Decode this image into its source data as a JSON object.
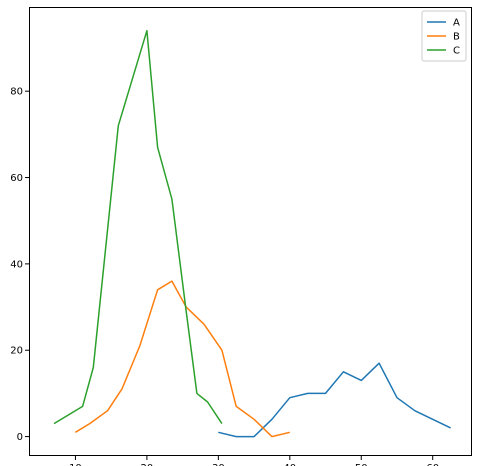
{
  "chart_data": {
    "type": "line",
    "xlim": [
      3.5,
      65.5
    ],
    "ylim": [
      -4.5,
      99.5
    ],
    "x_ticks": [
      10,
      20,
      30,
      40,
      50,
      60
    ],
    "y_ticks": [
      0,
      20,
      40,
      60,
      80
    ],
    "grid": false,
    "legend_position": "top-right",
    "series": [
      {
        "name": "A",
        "color": "#1f77b4",
        "x": [
          30,
          32.5,
          35,
          37.5,
          40,
          42.5,
          45,
          47.5,
          50,
          52.5,
          55,
          57.5,
          60,
          62.5
        ],
        "y": [
          1,
          0,
          0,
          4,
          9,
          10,
          10,
          15,
          13,
          17,
          9,
          6,
          4,
          2
        ]
      },
      {
        "name": "B",
        "color": "#ff7f0e",
        "x": [
          10,
          12,
          14.5,
          16.5,
          19,
          21.5,
          23.5,
          25.5,
          28,
          30.5,
          32.5,
          35,
          37.5,
          40
        ],
        "y": [
          1,
          3,
          6,
          11,
          21,
          34,
          36,
          30,
          26,
          20,
          7,
          4,
          0,
          1
        ]
      },
      {
        "name": "C",
        "color": "#2ca02c",
        "x": [
          7,
          11,
          12.5,
          14.5,
          16,
          18,
          20,
          21.5,
          23.5,
          25.5,
          27,
          28.5,
          30.5
        ],
        "y": [
          3,
          7,
          16,
          48,
          72,
          83,
          94,
          67,
          55,
          29,
          10,
          8,
          3
        ]
      }
    ]
  }
}
